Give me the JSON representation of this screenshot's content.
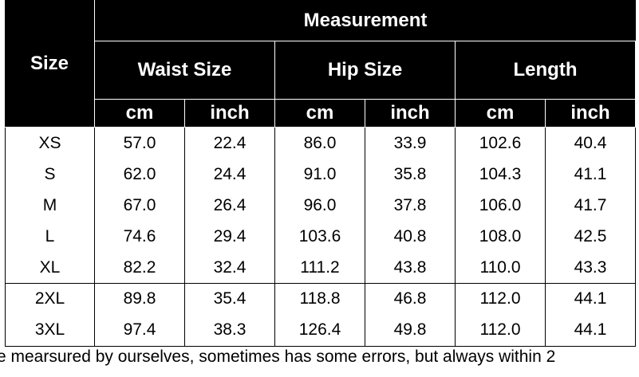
{
  "table": {
    "header": {
      "size": "Size",
      "measurement": "Measurement",
      "groups": [
        "Waist Size",
        "Hip Size",
        "Length"
      ],
      "units": [
        "cm",
        "inch",
        "cm",
        "inch",
        "cm",
        "inch"
      ]
    },
    "rows": [
      [
        "XS",
        "57.0",
        "22.4",
        "86.0",
        "33.9",
        "102.6",
        "40.4"
      ],
      [
        "S",
        "62.0",
        "24.4",
        "91.0",
        "35.8",
        "104.3",
        "41.1"
      ],
      [
        "M",
        "67.0",
        "26.4",
        "96.0",
        "37.8",
        "106.0",
        "41.7"
      ],
      [
        "L",
        "74.6",
        "29.4",
        "103.6",
        "40.8",
        "108.0",
        "42.5"
      ],
      [
        "XL",
        "82.2",
        "32.4",
        "111.2",
        "43.8",
        "110.0",
        "43.3"
      ],
      [
        "2XL",
        "89.8",
        "35.4",
        "118.8",
        "46.8",
        "112.0",
        "44.1"
      ],
      [
        "3XL",
        "97.4",
        "38.3",
        "126.4",
        "49.8",
        "112.0",
        "44.1"
      ]
    ]
  },
  "footnote": "e mearsured by ourselves, sometimes has some errors, but always within 2"
}
